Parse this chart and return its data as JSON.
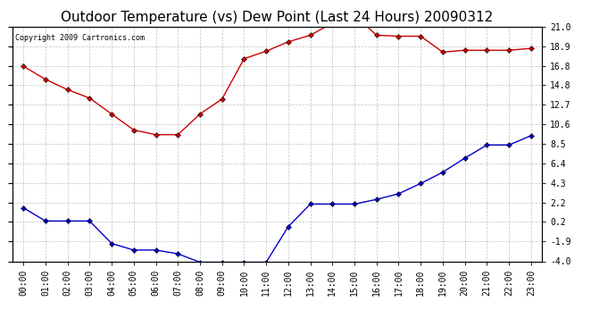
{
  "title": "Outdoor Temperature (vs) Dew Point (Last 24 Hours) 20090312",
  "copyright": "Copyright 2009 Cartronics.com",
  "x_labels": [
    "00:00",
    "01:00",
    "02:00",
    "03:00",
    "04:00",
    "05:00",
    "06:00",
    "07:00",
    "08:00",
    "09:00",
    "10:00",
    "11:00",
    "12:00",
    "13:00",
    "14:00",
    "15:00",
    "16:00",
    "17:00",
    "18:00",
    "19:00",
    "20:00",
    "21:00",
    "22:00",
    "23:00"
  ],
  "temp_data": [
    16.8,
    15.4,
    14.3,
    13.4,
    11.7,
    10.0,
    9.5,
    9.5,
    11.7,
    13.3,
    17.6,
    18.4,
    19.4,
    20.1,
    21.4,
    22.3,
    20.1,
    20.0,
    20.0,
    18.3,
    18.5,
    18.5,
    18.5,
    18.7
  ],
  "dew_data": [
    1.7,
    0.3,
    0.3,
    0.3,
    -2.1,
    -2.8,
    -2.8,
    -3.2,
    -4.1,
    -4.1,
    -4.1,
    -4.1,
    -0.3,
    2.1,
    2.1,
    2.1,
    2.6,
    3.2,
    4.3,
    5.5,
    7.0,
    8.4,
    8.4,
    9.4
  ],
  "temp_color": "#cc0000",
  "dew_color": "#0000cc",
  "bg_color": "#ffffff",
  "grid_color": "#bbbbbb",
  "y_ticks": [
    21.0,
    18.9,
    16.8,
    14.8,
    12.7,
    10.6,
    8.5,
    6.4,
    4.3,
    2.2,
    0.2,
    -1.9,
    -4.0
  ],
  "y_min": -4.0,
  "y_max": 21.0,
  "title_fontsize": 11,
  "tick_fontsize": 7,
  "copyright_fontsize": 6
}
